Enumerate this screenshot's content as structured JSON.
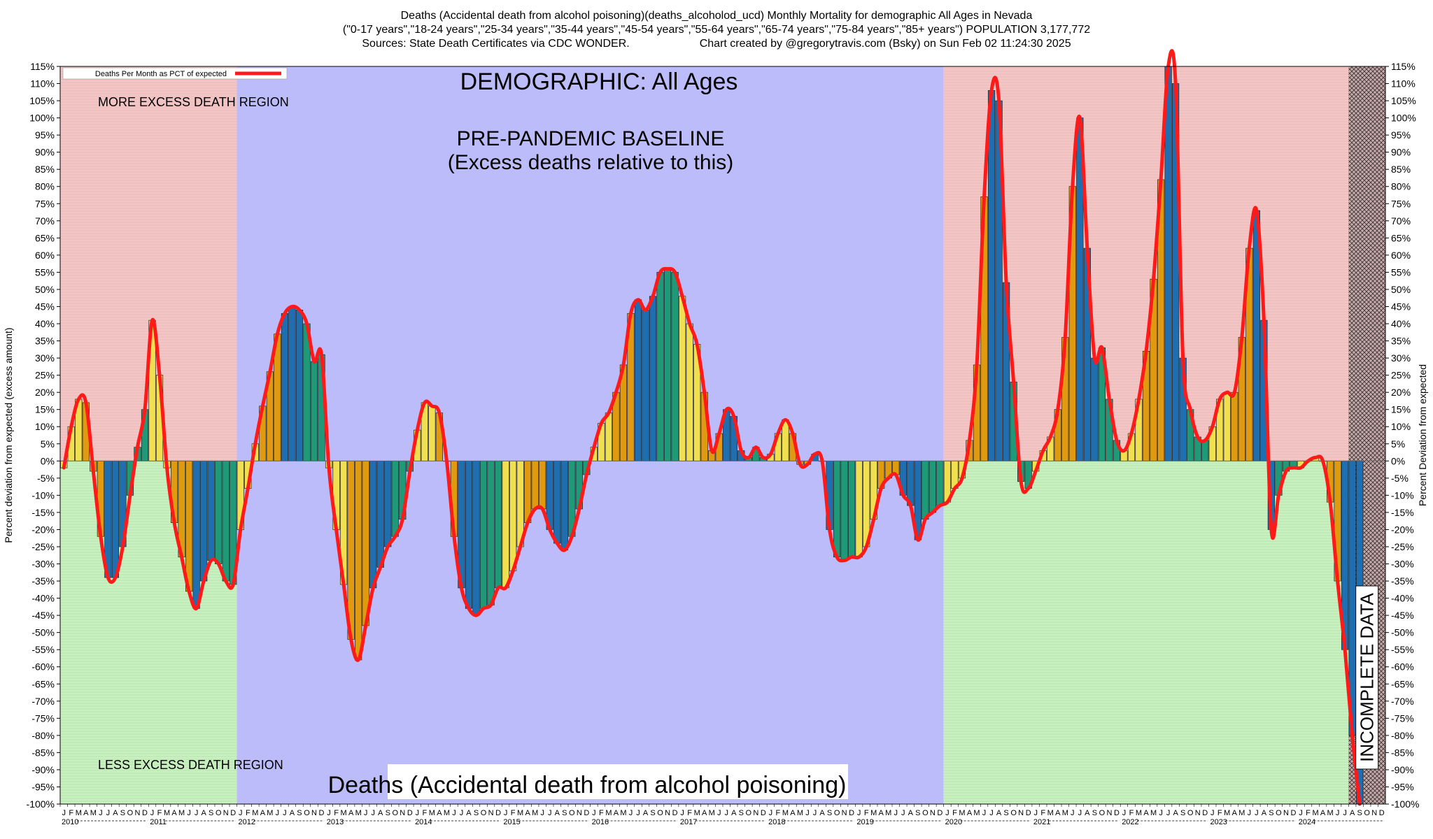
{
  "header": {
    "title_line1": "Deaths (Accidental death from alcohol poisoning)(deaths_alcoholod_ucd) Monthly Mortality for demographic All Ages in Nevada",
    "title_line2": "(\"0-17 years\",\"18-24 years\",\"25-34 years\",\"35-44 years\",\"45-54 years\",\"55-64 years\",\"65-74 years\",\"75-84 years\",\"85+ years\") POPULATION 3,177,772",
    "sources": "Sources: State Death Certificates via CDC WONDER.",
    "credit": "Chart created by @gregorytravis.com (Bsky) on Sun Feb 02 11:24:30 2025"
  },
  "colors": {
    "excess_region": "#f3c6c6",
    "less_region": "#c8f0c0",
    "baseline_region": "#bcbcfa",
    "incomplete_hatch": "#c9a8a8",
    "line": "#ff1a1a",
    "bar_yellow": "#f0e050",
    "bar_orange": "#e09a10",
    "bar_blue": "#1f6fb0",
    "bar_green": "#1e9a78"
  },
  "chart_data": {
    "type": "bar",
    "title": "DEMOGRAPHIC: All Ages",
    "subtitle": "Deaths (Accidental death from alcohol poisoning)",
    "legend_label": "Deaths Per Month as PCT of expected",
    "legend_position": "top-left",
    "ylabel_left": "Percent deviation from expected (excess amount)",
    "ylabel_right": "Percent Deviation from expected",
    "ylim": [
      -100,
      115
    ],
    "ytick_step": 5,
    "grid": true,
    "annotations": {
      "more_excess": "MORE EXCESS DEATH REGION",
      "less_excess": "LESS EXCESS DEATH REGION",
      "baseline_line1": "PRE-PANDEMIC BASELINE",
      "baseline_line2": "(Excess deaths relative to this)",
      "incomplete": "INCOMPLETE DATA"
    },
    "month_letters": [
      "J",
      "F",
      "M",
      "A",
      "M",
      "J",
      "J",
      "A",
      "S",
      "O",
      "N",
      "D"
    ],
    "years": [
      "2010",
      "2011",
      "2012",
      "2013",
      "2014",
      "2015",
      "2016",
      "2017",
      "2018",
      "2019",
      "2020",
      "2021",
      "2022",
      "2023",
      "2024"
    ],
    "baseline_period": [
      "2012-01",
      "2019-12"
    ],
    "incomplete_period": [
      "2024-08",
      "2024-12"
    ],
    "series": [
      {
        "name": "Deaths Per Month as PCT of expected",
        "start": "2010-01",
        "values": [
          -2,
          10,
          18,
          17,
          -3,
          -22,
          -34,
          -34,
          -25,
          -10,
          4,
          15,
          41,
          25,
          -2,
          -18,
          -28,
          -38,
          -43,
          -35,
          -29,
          -30,
          -35,
          -36,
          -20,
          -8,
          5,
          16,
          26,
          37,
          43,
          45,
          44,
          40,
          29,
          31,
          -2,
          -20,
          -36,
          -52,
          -58,
          -48,
          -37,
          -31,
          -25,
          -22,
          -17,
          -3,
          9,
          17,
          16,
          14,
          0,
          -22,
          -37,
          -43,
          -45,
          -43,
          -42,
          -37,
          -37,
          -32,
          -25,
          -18,
          -14,
          -14,
          -20,
          -24,
          -26,
          -22,
          -14,
          -4,
          4,
          11,
          14,
          20,
          28,
          43,
          47,
          44,
          48,
          55,
          56,
          55,
          48,
          40,
          34,
          20,
          3,
          8,
          15,
          13,
          3,
          1,
          4,
          1,
          2,
          8,
          12,
          8,
          -1,
          -1,
          2,
          0,
          -20,
          -28,
          -29,
          -28,
          -28,
          -25,
          -17,
          -8,
          -5,
          -4,
          -10,
          -13,
          -23,
          -17,
          -15,
          -13,
          -12,
          -8,
          -5,
          6,
          28,
          77,
          108,
          105,
          52,
          23,
          -6,
          -8,
          -3,
          3,
          7,
          15,
          36,
          80,
          100,
          62,
          30,
          33,
          18,
          6,
          3,
          8,
          18,
          32,
          53,
          82,
          115,
          110,
          30,
          15,
          7,
          6,
          10,
          18,
          20,
          20,
          36,
          62,
          73,
          41,
          -20,
          -10,
          -3,
          -2,
          -2,
          0,
          1,
          0,
          -12,
          -35,
          -55,
          -80,
          -100
        ]
      }
    ]
  }
}
